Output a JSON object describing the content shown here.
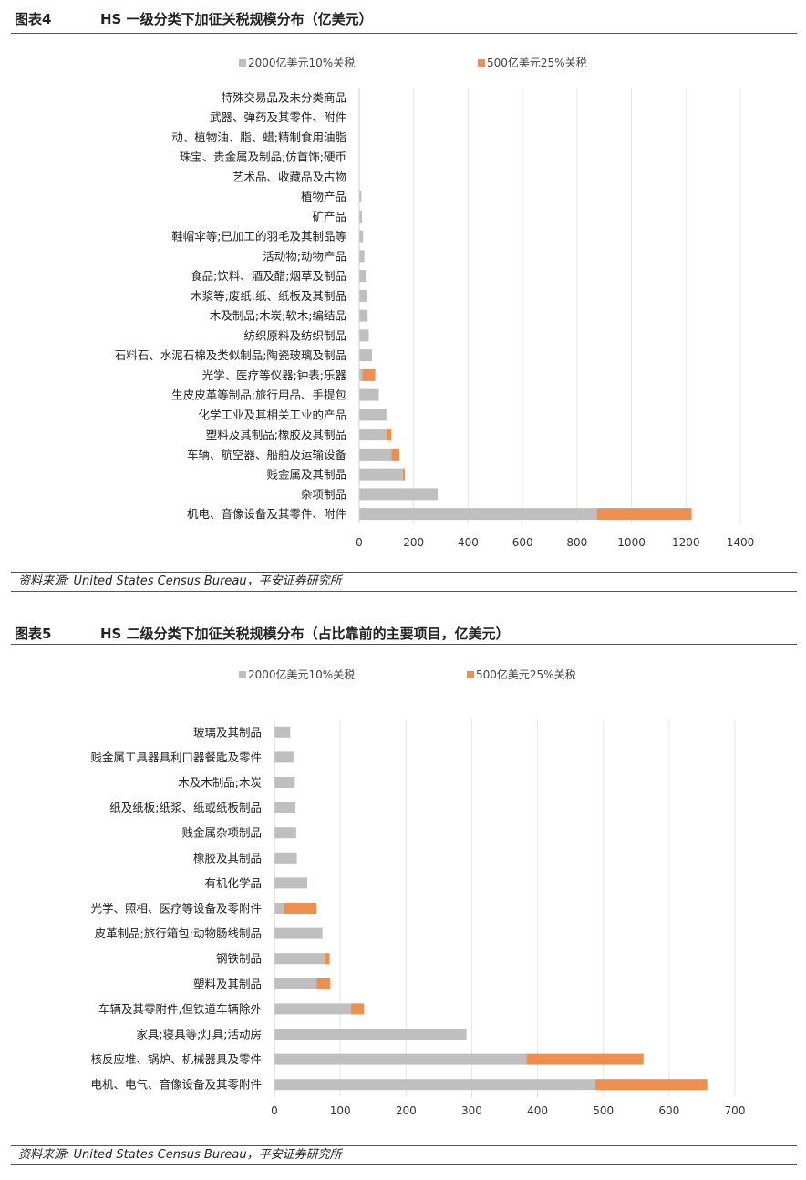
{
  "figures": [
    {
      "figure_no": "图表4",
      "title": "HS 一级分类下加征关税规模分布（亿美元）",
      "source": "资料来源: United States Census Bureau，平安证券研究所"
    },
    {
      "figure_no": "图表5",
      "title": "HS 二级分类下加征关税规模分布（占比靠前的主要项目，亿美元）",
      "source": "资料来源: United States Census Bureau，平安证券研究所"
    }
  ],
  "colors": {
    "series1": "#bfbfbf",
    "series2": "#ed8f4e",
    "grid": "#e6e6e6",
    "text": "#222222"
  },
  "chart_data": [
    {
      "type": "bar",
      "orientation": "horizontal",
      "stacked": true,
      "categories": [
        "特殊交易品及未分类商品",
        "武器、弹药及其零件、附件",
        "动、植物油、脂、蜡;精制食用油脂",
        "珠宝、贵金属及制品;仿首饰;硬币",
        "艺术品、收藏品及古物",
        "植物产品",
        "矿产品",
        "鞋帽伞等;已加工的羽毛及其制品等",
        "活动物;动物产品",
        "食品;饮料、酒及醋;烟草及制品",
        "木浆等;废纸;纸、纸板及其制品",
        "木及制品;木炭;软木;编结品",
        "纺织原料及纺织制品",
        "石料石、水泥石棉及类似制品;陶瓷玻璃及制品",
        "光学、医疗等仪器;钟表;乐器",
        "生皮皮革等制品;旅行用品、手提包",
        "化学工业及其相关工业的产品",
        "塑料及其制品;橡胶及其制品",
        "车辆、航空器、船舶及运输设备",
        "贱金属及其制品",
        "杂项制品",
        "机电、音像设备及其零件、附件"
      ],
      "series": [
        {
          "name": "2000亿美元10%关税",
          "values": [
            0,
            0,
            0,
            0,
            0,
            8,
            10,
            14,
            19,
            24,
            30,
            31,
            35,
            47,
            12,
            72,
            100,
            100,
            118,
            160,
            288,
            873
          ]
        },
        {
          "name": "500亿美元25%关税",
          "values": [
            0,
            0,
            0,
            0,
            0,
            0,
            0,
            0,
            0,
            0,
            0,
            0,
            0,
            0,
            47,
            0,
            0,
            18,
            30,
            8,
            0,
            348
          ]
        }
      ],
      "xlim": [
        0,
        1400
      ],
      "xticks": [
        0,
        200,
        400,
        600,
        800,
        1000,
        1200,
        1400
      ],
      "grid": true,
      "legend": "top"
    },
    {
      "type": "bar",
      "orientation": "horizontal",
      "stacked": true,
      "categories": [
        "玻璃及其制品",
        "贱金属工具器具利口器餐匙及零件",
        "木及木制品;木炭",
        "纸及纸板;纸浆、纸或纸板制品",
        "贱金属杂项制品",
        "橡胶及其制品",
        "有机化学品",
        "光学、照相、医疗等设备及零附件",
        "皮革制品;旅行箱包;动物肠线制品",
        "钢铁制品",
        "塑料及其制品",
        "车辆及其零附件,但铁道车辆除外",
        "家具;寝具等;灯具;活动房",
        "核反应堆、锅炉、机械器具及零件",
        "电机、电气、音像设备及其零附件"
      ],
      "series": [
        {
          "name": "2000亿美元10%关税",
          "values": [
            24,
            29,
            31,
            32,
            33,
            34,
            50,
            14,
            73,
            76,
            64,
            116,
            292,
            383,
            488
          ]
        },
        {
          "name": "500亿美元25%关税",
          "values": [
            0,
            0,
            0,
            0,
            0,
            0,
            0,
            50,
            0,
            8,
            21,
            20,
            0,
            178,
            170
          ]
        }
      ],
      "xlim": [
        0,
        700
      ],
      "xticks": [
        0,
        100,
        200,
        300,
        400,
        500,
        600,
        700
      ],
      "grid": true,
      "legend": "top"
    }
  ]
}
